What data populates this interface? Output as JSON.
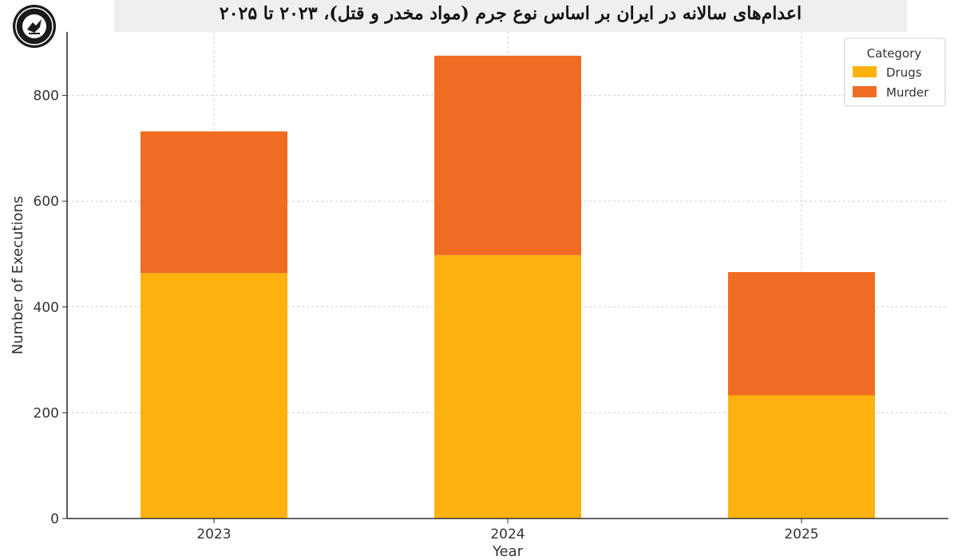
{
  "chart_data": {
    "type": "bar",
    "stacked": true,
    "title": "اعدام‌های سالانه در ایران بر اساس نوع جرم (مواد مخدر و قتل)، ۲۰۲۳ تا ۲۰۲۵",
    "xlabel": "Year",
    "ylabel": "Number of Executions",
    "categories": [
      "2023",
      "2024",
      "2025"
    ],
    "series": [
      {
        "name": "Drugs",
        "values": [
          464,
          498,
          233
        ],
        "color": "#fdb20f"
      },
      {
        "name": "Murder",
        "values": [
          268,
          377,
          233
        ],
        "color": "#f06c22"
      }
    ],
    "ylim": [
      0,
      920
    ],
    "yticks": [
      0,
      200,
      400,
      600,
      800
    ],
    "grid": true,
    "legend": {
      "title": "Category",
      "position": "top-right"
    }
  },
  "colors": {
    "axis": "#333333",
    "grid": "#cfcfcf",
    "title_band": "#efefef"
  },
  "logo": {
    "icon": "organization-seal-logo"
  }
}
